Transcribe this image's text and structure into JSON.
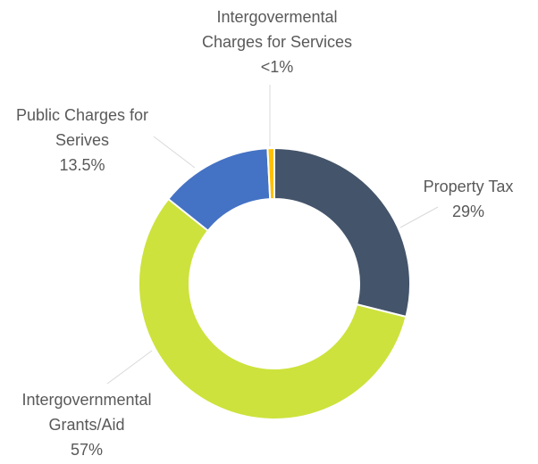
{
  "chart_data": {
    "type": "donut",
    "categories": [
      "Property Tax",
      "Intergovernmental Grants/Aid",
      "Public Charges for Serives",
      "Intergovermental Charges for Services"
    ],
    "values": [
      29,
      57,
      13.5,
      0.8
    ],
    "value_labels": [
      "29%",
      "57%",
      "13.5%",
      "<1%"
    ],
    "colors": [
      "#44546a",
      "#cde23c",
      "#4472c4",
      "#ffc000"
    ]
  }
}
